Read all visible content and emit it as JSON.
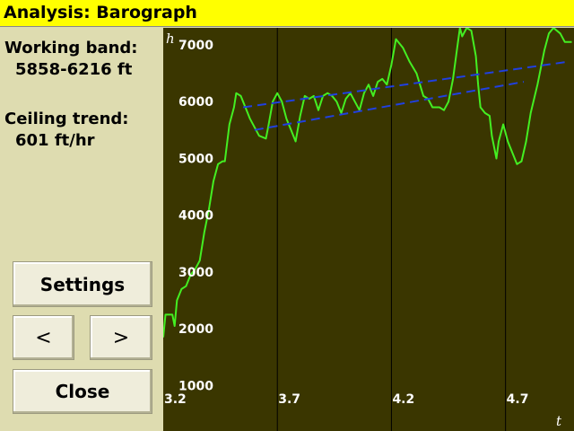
{
  "title": "Analysis: Barograph",
  "working_band": {
    "label": "Working band:",
    "value": "5858-6216 ft"
  },
  "ceiling_trend": {
    "label": "Ceiling trend:",
    "value": "601 ft/hr"
  },
  "buttons": {
    "settings": "Settings",
    "prev": "<",
    "next": ">",
    "close": "Close"
  },
  "chart_data": {
    "type": "line",
    "xlabel": "t",
    "ylabel": "h",
    "xlim": [
      3.2,
      5.0
    ],
    "ylim": [
      200,
      7300
    ],
    "x_ticks": [
      3.2,
      3.7,
      4.2,
      4.7
    ],
    "y_ticks": [
      1000,
      2000,
      3000,
      4000,
      5000,
      6000,
      7000
    ],
    "grid": true,
    "series": [
      {
        "color": "#44ee22",
        "points": [
          [
            3.2,
            1850
          ],
          [
            3.21,
            2250
          ],
          [
            3.24,
            2250
          ],
          [
            3.25,
            2050
          ],
          [
            3.26,
            2500
          ],
          [
            3.28,
            2700
          ],
          [
            3.3,
            2750
          ],
          [
            3.32,
            2950
          ],
          [
            3.34,
            3050
          ],
          [
            3.36,
            3200
          ],
          [
            3.38,
            3700
          ],
          [
            3.4,
            4100
          ],
          [
            3.42,
            4600
          ],
          [
            3.44,
            4900
          ],
          [
            3.46,
            4950
          ],
          [
            3.47,
            4950
          ],
          [
            3.49,
            5600
          ],
          [
            3.51,
            5900
          ],
          [
            3.52,
            6150
          ],
          [
            3.54,
            6100
          ],
          [
            3.56,
            5900
          ],
          [
            3.58,
            5700
          ],
          [
            3.6,
            5550
          ],
          [
            3.62,
            5400
          ],
          [
            3.65,
            5350
          ],
          [
            3.66,
            5550
          ],
          [
            3.68,
            6000
          ],
          [
            3.7,
            6150
          ],
          [
            3.72,
            6000
          ],
          [
            3.74,
            5700
          ],
          [
            3.76,
            5500
          ],
          [
            3.78,
            5300
          ],
          [
            3.8,
            5750
          ],
          [
            3.82,
            6100
          ],
          [
            3.84,
            6050
          ],
          [
            3.86,
            6100
          ],
          [
            3.88,
            5850
          ],
          [
            3.9,
            6100
          ],
          [
            3.92,
            6150
          ],
          [
            3.94,
            6100
          ],
          [
            3.96,
            6000
          ],
          [
            3.98,
            5800
          ],
          [
            4.0,
            6050
          ],
          [
            4.02,
            6150
          ],
          [
            4.04,
            6000
          ],
          [
            4.06,
            5850
          ],
          [
            4.08,
            6150
          ],
          [
            4.1,
            6300
          ],
          [
            4.12,
            6100
          ],
          [
            4.14,
            6350
          ],
          [
            4.16,
            6400
          ],
          [
            4.18,
            6300
          ],
          [
            4.2,
            6650
          ],
          [
            4.22,
            7100
          ],
          [
            4.25,
            6950
          ],
          [
            4.28,
            6700
          ],
          [
            4.31,
            6500
          ],
          [
            4.34,
            6100
          ],
          [
            4.36,
            6050
          ],
          [
            4.38,
            5900
          ],
          [
            4.41,
            5900
          ],
          [
            4.43,
            5850
          ],
          [
            4.45,
            6000
          ],
          [
            4.47,
            6400
          ],
          [
            4.49,
            7000
          ],
          [
            4.5,
            7300
          ],
          [
            4.51,
            7150
          ],
          [
            4.53,
            7300
          ],
          [
            4.55,
            7250
          ],
          [
            4.57,
            6800
          ],
          [
            4.58,
            6300
          ],
          [
            4.59,
            5900
          ],
          [
            4.61,
            5800
          ],
          [
            4.63,
            5750
          ],
          [
            4.64,
            5400
          ],
          [
            4.66,
            5000
          ],
          [
            4.67,
            5300
          ],
          [
            4.69,
            5600
          ],
          [
            4.71,
            5300
          ],
          [
            4.73,
            5100
          ],
          [
            4.75,
            4900
          ],
          [
            4.77,
            4950
          ],
          [
            4.79,
            5300
          ],
          [
            4.81,
            5800
          ],
          [
            4.84,
            6300
          ],
          [
            4.87,
            6900
          ],
          [
            4.89,
            7200
          ],
          [
            4.91,
            7300
          ],
          [
            4.94,
            7200
          ],
          [
            4.96,
            7050
          ],
          [
            4.99,
            7050
          ]
        ]
      },
      {
        "color": "#2040e0",
        "dashed": true,
        "points": [
          [
            3.55,
            5900
          ],
          [
            4.97,
            6700
          ]
        ]
      },
      {
        "color": "#2040e0",
        "dashed": true,
        "points": [
          [
            3.6,
            5500
          ],
          [
            4.78,
            6350
          ]
        ]
      }
    ]
  }
}
